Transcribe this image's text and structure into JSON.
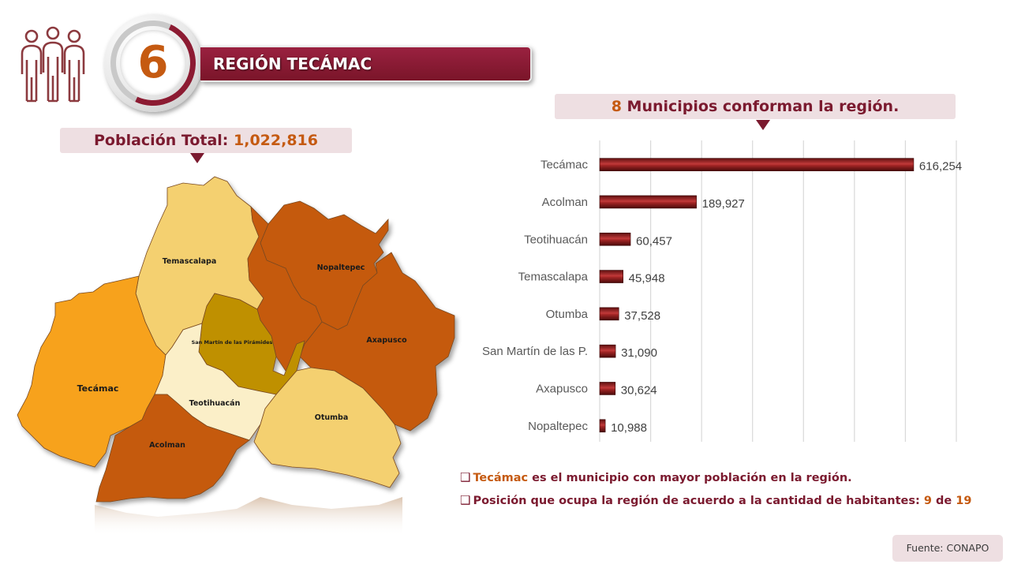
{
  "header": {
    "region_number": "6",
    "title": "REGIÓN TECÁMAC"
  },
  "population": {
    "label": "Población Total:",
    "value": "1,022,816"
  },
  "municipios_heading": {
    "count": "8",
    "text": "Municipios conforman la región."
  },
  "map": {
    "labels": {
      "temascalapa": "Temascalapa",
      "nopaltepec": "Nopaltepec",
      "san_martin": "San Martín de las Pirámides",
      "axapusco": "Axapusco",
      "tecamac": "Tecámac",
      "teotihuacan": "Teotihuacán",
      "otumba": "Otumba",
      "acolman": "Acolman"
    }
  },
  "chart_data": {
    "type": "bar",
    "orientation": "horizontal",
    "categories": [
      "Tecámac",
      "Acolman",
      "Teotihuacán",
      "Temascalapa",
      "Otumba",
      "San Martín de las P.",
      "Axapusco",
      "Nopaltepec"
    ],
    "values": [
      616254,
      189927,
      60457,
      45948,
      37528,
      31090,
      30624,
      10988
    ],
    "value_labels": [
      "616,254",
      "189,927",
      "60,457",
      "45,948",
      "37,528",
      "31,090",
      "30,624",
      "10,988"
    ],
    "xlim": [
      0,
      700000
    ],
    "grid": true,
    "bar_color": "#8b1a1a"
  },
  "notes": [
    {
      "highlight": "Tecámac",
      "text": " es el municipio con mayor población en la región."
    },
    {
      "text": "Posición que ocupa la región de acuerdo a la cantidad de habitantes: ",
      "rank": "9",
      "de": " de ",
      "total": "19"
    }
  ],
  "source": "Fuente: CONAPO",
  "colors": {
    "maroon": "#7b1a2f",
    "orange_text": "#c55a11",
    "pill_bg": "#eedfe2"
  }
}
